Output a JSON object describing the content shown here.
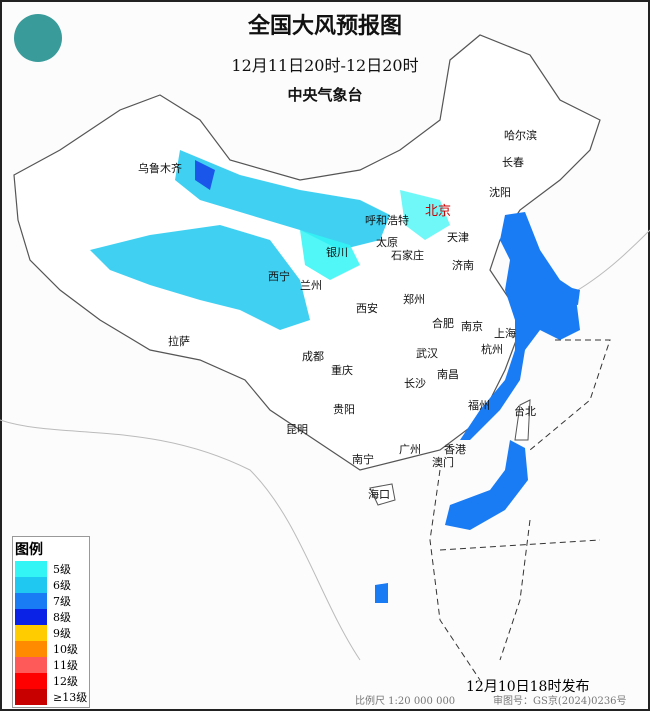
{
  "title": "全国大风预报图",
  "period": "12月11日20时-12日20时",
  "agency": "中央气象台",
  "issued": "12月10日18时发布",
  "scale": "比例尺 1:20 000 000",
  "review_no": "审图号：GS京(2024)0236号",
  "legend": {
    "title": "图例",
    "items": [
      {
        "label": "5级",
        "color": "#33f5f5"
      },
      {
        "label": "6级",
        "color": "#1ec8f0"
      },
      {
        "label": "7级",
        "color": "#1a7cf5"
      },
      {
        "label": "8级",
        "color": "#0a22e6"
      },
      {
        "label": "9级",
        "color": "#ffcc00"
      },
      {
        "label": "10级",
        "color": "#ff8c00"
      },
      {
        "label": "11级",
        "color": "#ff5a5a"
      },
      {
        "label": "12级",
        "color": "#ff0000"
      },
      {
        "label": "≥13级",
        "color": "#c80000"
      }
    ]
  },
  "capital": "北京",
  "cities": [
    "乌鲁木齐",
    "呼和浩特",
    "天津",
    "沈阳",
    "长春",
    "哈尔滨",
    "银川",
    "太原",
    "石家庄",
    "济南",
    "西宁",
    "兰州",
    "西安",
    "郑州",
    "合肥",
    "南京",
    "上海",
    "杭州",
    "拉萨",
    "成都",
    "武汉",
    "重庆",
    "南昌",
    "长沙",
    "福州",
    "台北",
    "贵阳",
    "昆明",
    "广州",
    "香港",
    "澳门",
    "南宁",
    "海口"
  ]
}
